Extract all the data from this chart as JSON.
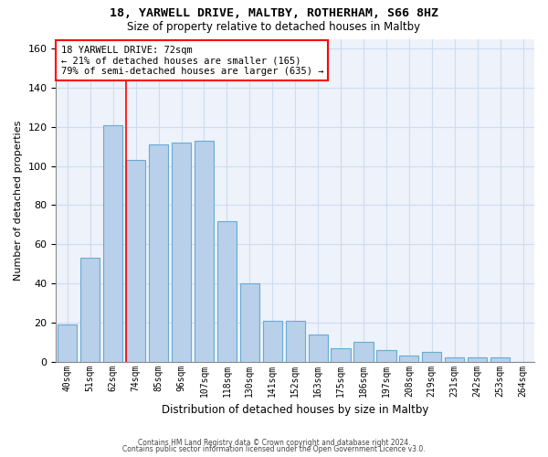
{
  "title": "18, YARWELL DRIVE, MALTBY, ROTHERHAM, S66 8HZ",
  "subtitle": "Size of property relative to detached houses in Maltby",
  "xlabel": "Distribution of detached houses by size in Maltby",
  "ylabel": "Number of detached properties",
  "bar_color": "#b8d0ea",
  "bar_edge_color": "#6aaad4",
  "grid_color": "#ccddf0",
  "background_color": "#eef2fb",
  "categories": [
    "40sqm",
    "51sqm",
    "62sqm",
    "74sqm",
    "85sqm",
    "96sqm",
    "107sqm",
    "118sqm",
    "130sqm",
    "141sqm",
    "152sqm",
    "163sqm",
    "175sqm",
    "186sqm",
    "197sqm",
    "208sqm",
    "219sqm",
    "231sqm",
    "242sqm",
    "253sqm",
    "264sqm"
  ],
  "values": [
    19,
    53,
    121,
    103,
    111,
    112,
    113,
    72,
    40,
    21,
    21,
    14,
    7,
    10,
    6,
    3,
    5,
    2,
    2,
    2,
    0
  ],
  "ylim": [
    0,
    165
  ],
  "yticks": [
    0,
    20,
    40,
    60,
    80,
    100,
    120,
    140,
    160
  ],
  "red_line_x": 2.575,
  "annotation_title": "18 YARWELL DRIVE: 72sqm",
  "annotation_line1": "← 21% of detached houses are smaller (165)",
  "annotation_line2": "79% of semi-detached houses are larger (635) →",
  "footnote1": "Contains HM Land Registry data © Crown copyright and database right 2024.",
  "footnote2": "Contains public sector information licensed under the Open Government Licence v3.0."
}
